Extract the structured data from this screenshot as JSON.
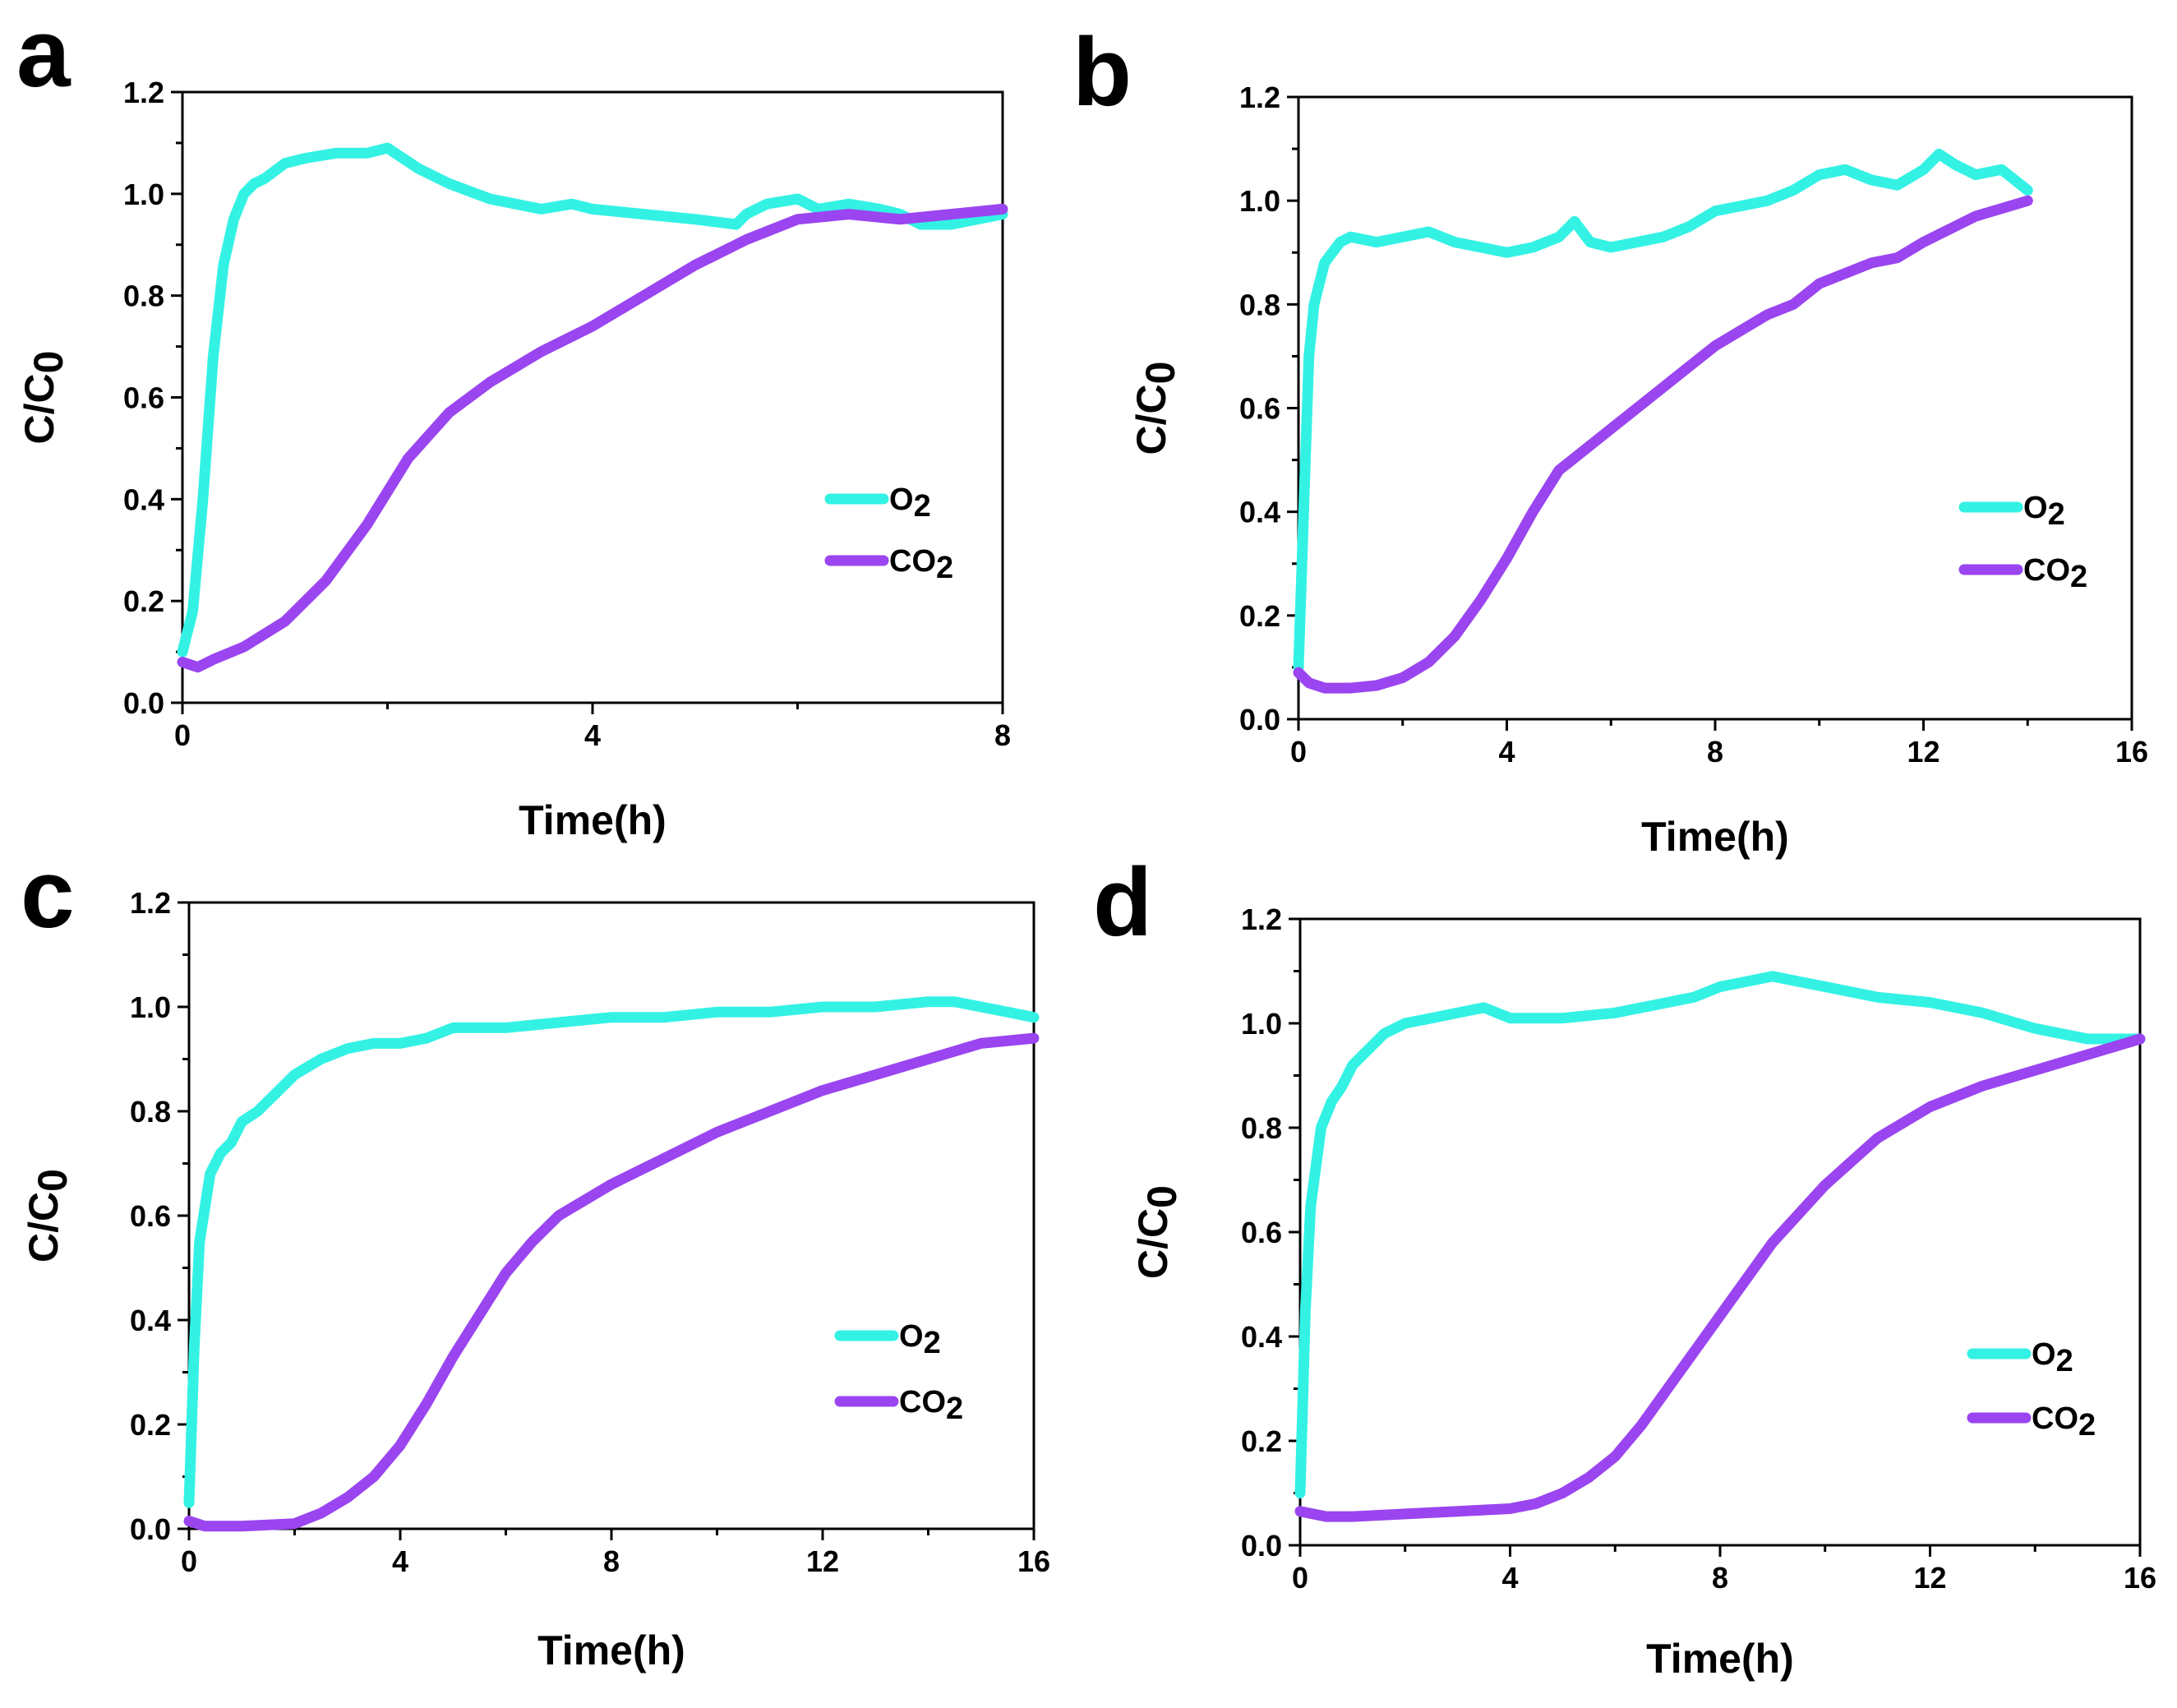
{
  "colors": {
    "o2": "#33F2E4",
    "co2": "#9A45F0"
  },
  "chart_data": [
    {
      "panel": "a",
      "type": "line",
      "xlabel": "Time(h)",
      "ylabel": "C/C0",
      "xlim": [
        0,
        8
      ],
      "ylim": [
        0,
        1.2
      ],
      "xticks": [
        0,
        4,
        8
      ],
      "xtick_labels": [
        "0",
        "4",
        "8"
      ],
      "yticks": [
        0,
        0.2,
        0.4,
        0.6,
        0.8,
        1.0,
        1.2
      ],
      "ytick_labels": [
        "0.0",
        "0.2",
        "0.4",
        "0.6",
        "0.8",
        "1.0",
        "1.2"
      ],
      "legend": {
        "position": "center-right",
        "entries": [
          "O2",
          "CO2"
        ]
      },
      "series": [
        {
          "name": "O2",
          "color_key": "o2",
          "x": [
            0,
            0.1,
            0.2,
            0.3,
            0.4,
            0.5,
            0.6,
            0.7,
            0.8,
            1.0,
            1.2,
            1.5,
            1.8,
            2.0,
            2.3,
            2.6,
            3.0,
            3.5,
            3.8,
            4.0,
            4.5,
            5.0,
            5.4,
            5.5,
            5.7,
            6.0,
            6.2,
            6.5,
            6.8,
            7.0,
            7.2,
            7.5,
            8.0
          ],
          "y": [
            0.1,
            0.18,
            0.4,
            0.68,
            0.86,
            0.95,
            1.0,
            1.02,
            1.03,
            1.06,
            1.07,
            1.08,
            1.08,
            1.09,
            1.05,
            1.02,
            0.99,
            0.97,
            0.98,
            0.97,
            0.96,
            0.95,
            0.94,
            0.96,
            0.98,
            0.99,
            0.97,
            0.98,
            0.97,
            0.96,
            0.94,
            0.94,
            0.96
          ]
        },
        {
          "name": "CO2",
          "color_key": "co2",
          "x": [
            0,
            0.15,
            0.3,
            0.6,
            1.0,
            1.4,
            1.8,
            2.2,
            2.6,
            3.0,
            3.5,
            4.0,
            4.5,
            5.0,
            5.5,
            6.0,
            6.5,
            7.0,
            7.5,
            8.0
          ],
          "y": [
            0.08,
            0.07,
            0.085,
            0.11,
            0.16,
            0.24,
            0.35,
            0.48,
            0.57,
            0.63,
            0.69,
            0.74,
            0.8,
            0.86,
            0.91,
            0.95,
            0.96,
            0.95,
            0.96,
            0.97
          ]
        }
      ]
    },
    {
      "panel": "b",
      "type": "line",
      "xlabel": "Time(h)",
      "ylabel": "C/C0",
      "xlim": [
        0,
        16
      ],
      "ylim": [
        0,
        1.2
      ],
      "xticks": [
        0,
        4,
        8,
        12,
        16
      ],
      "xtick_labels": [
        "0",
        "4",
        "8",
        "12",
        "16"
      ],
      "yticks": [
        0,
        0.2,
        0.4,
        0.6,
        0.8,
        1.0,
        1.2
      ],
      "ytick_labels": [
        "0.0",
        "0.2",
        "0.4",
        "0.6",
        "0.8",
        "1.0",
        "1.2"
      ],
      "legend": {
        "position": "center-right",
        "entries": [
          "O2",
          "CO2"
        ]
      },
      "series": [
        {
          "name": "O2",
          "color_key": "o2",
          "x": [
            0,
            0.1,
            0.2,
            0.3,
            0.5,
            0.8,
            1.0,
            1.5,
            2.0,
            2.5,
            3.0,
            3.5,
            4.0,
            4.5,
            5.0,
            5.3,
            5.6,
            6.0,
            6.5,
            7.0,
            7.5,
            8.0,
            8.5,
            9.0,
            9.5,
            10.0,
            10.5,
            11.0,
            11.5,
            12.0,
            12.3,
            12.6,
            13.0,
            13.5,
            14.0
          ],
          "y": [
            0.1,
            0.4,
            0.7,
            0.8,
            0.88,
            0.92,
            0.93,
            0.92,
            0.93,
            0.94,
            0.92,
            0.91,
            0.9,
            0.91,
            0.93,
            0.96,
            0.92,
            0.91,
            0.92,
            0.93,
            0.95,
            0.98,
            0.99,
            1.0,
            1.02,
            1.05,
            1.06,
            1.04,
            1.03,
            1.06,
            1.09,
            1.07,
            1.05,
            1.06,
            1.02
          ]
        },
        {
          "name": "CO2",
          "color_key": "co2",
          "x": [
            0,
            0.2,
            0.5,
            1.0,
            1.5,
            2.0,
            2.5,
            3.0,
            3.5,
            4.0,
            4.5,
            5.0,
            5.5,
            6.0,
            7.0,
            8.0,
            9.0,
            9.5,
            10.0,
            11.0,
            11.5,
            12.0,
            13.0,
            14.0
          ],
          "y": [
            0.09,
            0.07,
            0.06,
            0.06,
            0.065,
            0.08,
            0.11,
            0.16,
            0.23,
            0.31,
            0.4,
            0.48,
            0.52,
            0.56,
            0.64,
            0.72,
            0.78,
            0.8,
            0.84,
            0.88,
            0.89,
            0.92,
            0.97,
            1.0
          ]
        }
      ]
    },
    {
      "panel": "c",
      "type": "line",
      "xlabel": "Time(h)",
      "ylabel": "C/C0",
      "xlim": [
        0,
        16
      ],
      "ylim": [
        0,
        1.2
      ],
      "xticks": [
        0,
        4,
        8,
        12,
        16
      ],
      "xtick_labels": [
        "0",
        "4",
        "8",
        "12",
        "16"
      ],
      "yticks": [
        0,
        0.2,
        0.4,
        0.6,
        0.8,
        1.0,
        1.2
      ],
      "ytick_labels": [
        "0.0",
        "0.2",
        "0.4",
        "0.6",
        "0.8",
        "1.0",
        "1.2"
      ],
      "legend": {
        "position": "lower-right",
        "entries": [
          "O2",
          "CO2"
        ]
      },
      "series": [
        {
          "name": "O2",
          "color_key": "o2",
          "x": [
            0,
            0.1,
            0.2,
            0.4,
            0.6,
            0.8,
            1.0,
            1.3,
            1.6,
            2.0,
            2.5,
            3.0,
            3.5,
            4.0,
            4.5,
            5.0,
            6.0,
            7.0,
            8.0,
            9.0,
            10.0,
            11.0,
            12.0,
            13.0,
            14.0,
            14.5,
            15.0,
            15.5,
            16.0
          ],
          "y": [
            0.05,
            0.35,
            0.55,
            0.68,
            0.72,
            0.74,
            0.78,
            0.8,
            0.83,
            0.87,
            0.9,
            0.92,
            0.93,
            0.93,
            0.94,
            0.96,
            0.96,
            0.97,
            0.98,
            0.98,
            0.99,
            0.99,
            1.0,
            1.0,
            1.01,
            1.01,
            1.0,
            0.99,
            0.98
          ]
        },
        {
          "name": "CO2",
          "color_key": "co2",
          "x": [
            0,
            0.3,
            1.0,
            2.0,
            2.5,
            3.0,
            3.5,
            4.0,
            4.5,
            5.0,
            5.5,
            6.0,
            6.5,
            7.0,
            8.0,
            9.0,
            10.0,
            11.0,
            12.0,
            13.0,
            14.0,
            15.0,
            16.0
          ],
          "y": [
            0.015,
            0.005,
            0.005,
            0.01,
            0.03,
            0.06,
            0.1,
            0.16,
            0.24,
            0.33,
            0.41,
            0.49,
            0.55,
            0.6,
            0.66,
            0.71,
            0.76,
            0.8,
            0.84,
            0.87,
            0.9,
            0.93,
            0.94
          ]
        }
      ]
    },
    {
      "panel": "d",
      "type": "line",
      "xlabel": "Time(h)",
      "ylabel": "C/C0",
      "xlim": [
        0,
        16
      ],
      "ylim": [
        0,
        1.2
      ],
      "xticks": [
        0,
        4,
        8,
        12,
        16
      ],
      "xtick_labels": [
        "0",
        "4",
        "8",
        "12",
        "16"
      ],
      "yticks": [
        0,
        0.2,
        0.4,
        0.6,
        0.8,
        1.0,
        1.2
      ],
      "ytick_labels": [
        "0.0",
        "0.2",
        "0.4",
        "0.6",
        "0.8",
        "1.0",
        "1.2"
      ],
      "legend": {
        "position": "lower-right",
        "entries": [
          "O2",
          "CO2"
        ]
      },
      "series": [
        {
          "name": "O2",
          "color_key": "o2",
          "x": [
            0,
            0.1,
            0.2,
            0.4,
            0.6,
            0.8,
            1.0,
            1.3,
            1.6,
            2.0,
            2.5,
            3.0,
            3.5,
            4.0,
            4.5,
            5.0,
            6.0,
            7.0,
            7.5,
            8.0,
            8.5,
            9.0,
            9.5,
            10.0,
            10.5,
            11.0,
            12.0,
            13.0,
            14.0,
            15.0,
            16.0
          ],
          "y": [
            0.1,
            0.45,
            0.65,
            0.8,
            0.85,
            0.88,
            0.92,
            0.95,
            0.98,
            1.0,
            1.01,
            1.02,
            1.03,
            1.01,
            1.01,
            1.01,
            1.02,
            1.04,
            1.05,
            1.07,
            1.08,
            1.09,
            1.08,
            1.07,
            1.06,
            1.05,
            1.04,
            1.02,
            0.99,
            0.97,
            0.97
          ]
        },
        {
          "name": "CO2",
          "color_key": "co2",
          "x": [
            0,
            0.5,
            1.0,
            2.0,
            3.0,
            4.0,
            4.5,
            5.0,
            5.5,
            6.0,
            6.5,
            7.0,
            7.5,
            8.0,
            8.5,
            9.0,
            10.0,
            11.0,
            12.0,
            13.0,
            14.0,
            15.0,
            16.0
          ],
          "y": [
            0.065,
            0.055,
            0.055,
            0.06,
            0.065,
            0.07,
            0.08,
            0.1,
            0.13,
            0.17,
            0.23,
            0.3,
            0.37,
            0.44,
            0.51,
            0.58,
            0.69,
            0.78,
            0.84,
            0.88,
            0.91,
            0.94,
            0.97
          ]
        }
      ]
    }
  ]
}
